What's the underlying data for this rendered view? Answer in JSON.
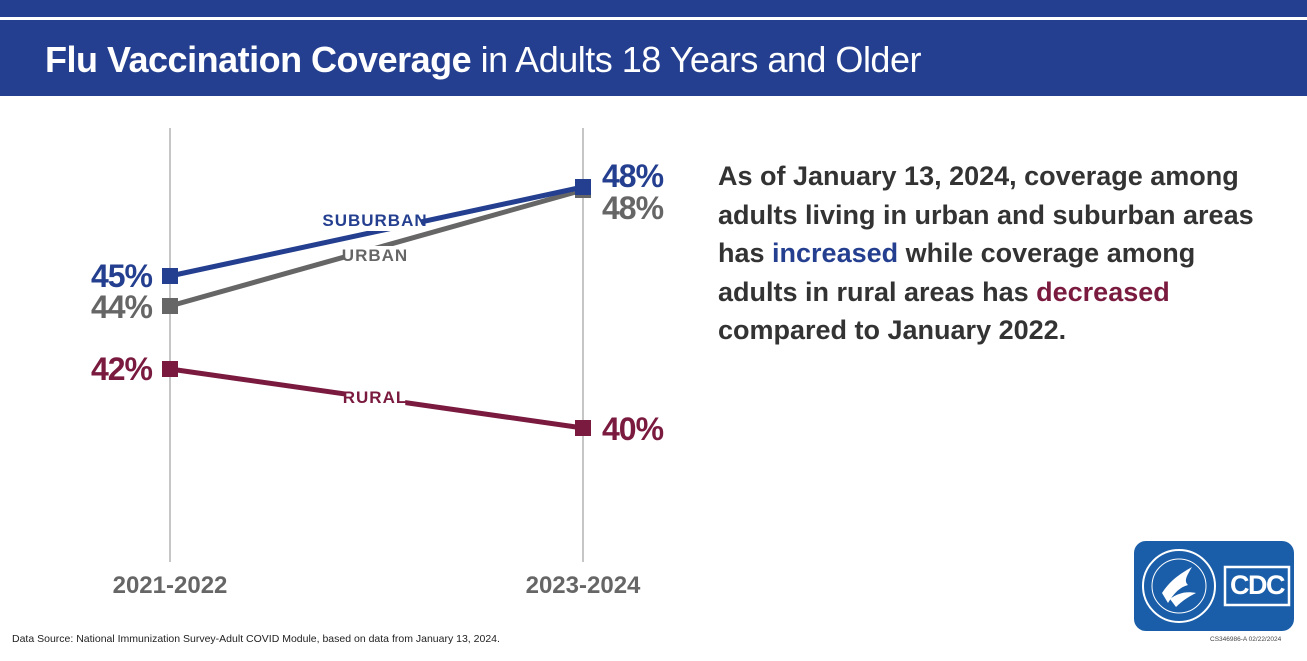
{
  "header": {
    "title_bold": "Flu Vaccination Coverage",
    "title_rest": " in Adults 18 Years and Older",
    "background": "#243f8f"
  },
  "chart_data": {
    "type": "line",
    "x": [
      "2021-2022",
      "2023-2024"
    ],
    "ylim": [
      36,
      50
    ],
    "series": [
      {
        "name": "SUBURBAN",
        "values": [
          45,
          48
        ],
        "labels": [
          "45%",
          "48%"
        ],
        "color": "#243f8f"
      },
      {
        "name": "URBAN",
        "values": [
          44,
          48
        ],
        "labels": [
          "44%",
          "48%"
        ],
        "color": "#666666"
      },
      {
        "name": "RURAL",
        "values": [
          42,
          40
        ],
        "labels": [
          "42%",
          "40%"
        ],
        "color": "#7a1a3e"
      }
    ],
    "grid": "vertical lines at each x category"
  },
  "summary": {
    "part1": "As of January 13, 2024, coverage among adults living in urban and suburban areas has ",
    "increased": "increased",
    "part2": " while coverage among adults in rural areas has ",
    "decreased": "decreased",
    "part3": " compared to January 2022.",
    "increased_color": "#243f8f",
    "decreased_color": "#7a1a3e"
  },
  "footer": {
    "source": "Data Source: National Immunization Survey-Adult COVID Module, based on data from January 13, 2024.",
    "doc_id": "CS346986-A  02/22/2024"
  },
  "logo": {
    "text": "CDC",
    "icon": "hhs-eagle-seal-icon",
    "color": "#1a5ea9"
  }
}
